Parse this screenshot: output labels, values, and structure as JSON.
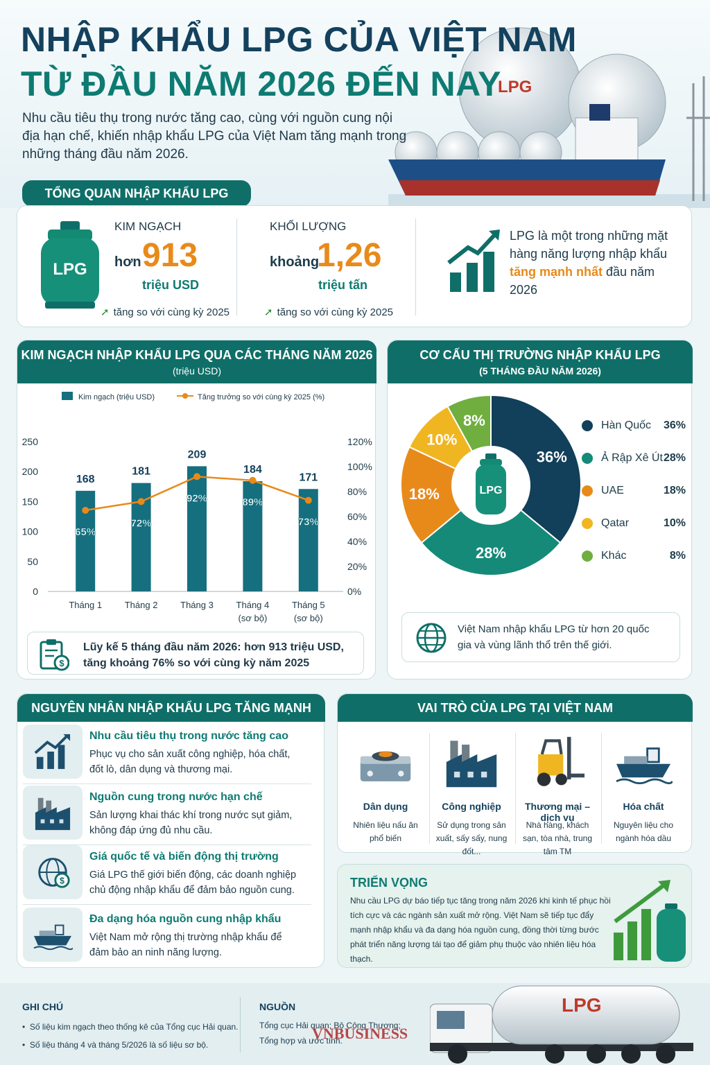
{
  "header": {
    "title_line1": "NHẬP KHẨU LPG CỦA VIỆT NAM",
    "title_line2": "TỪ ĐẦU NĂM 2026 ĐẾN NAY",
    "intro": "Nhu cầu tiêu thụ trong nước tăng cao, cùng với nguồn cung nội địa hạn chế, khiến nhập khẩu LPG của Việt Nam tăng mạnh trong những tháng đầu năm 2026.",
    "tank_label": "LPG"
  },
  "overview": {
    "title": "TỔNG QUAN NHẬP KHẨU LPG",
    "cylinder_label": "LPG",
    "value": {
      "label": "KIM NGẠCH",
      "prefix": "hơn",
      "number": "913",
      "unit": "triệu USD",
      "trend": "tăng so với cùng kỳ 2025"
    },
    "volume": {
      "label": "KHỐI LƯỢNG",
      "prefix": "khoảng",
      "number": "1,26",
      "unit": "triệu tấn",
      "trend": "tăng so với cùng kỳ 2025"
    },
    "note_pre": "LPG là một trong những mặt hàng năng lượng nhập khẩu ",
    "note_highlight": "tăng mạnh nhất",
    "note_post": " đầu năm 2026"
  },
  "monthly": {
    "title": "KIM NGẠCH NHẬP KHẨU LPG QUA CÁC THÁNG NĂM 2026",
    "subtitle": "(triệu USD)",
    "summary_line1": "Lũy kế 5 tháng đầu năm 2026: hơn 913 triệu USD,",
    "summary_line2": "tăng khoảng 76% so với cùng kỳ năm 2025"
  },
  "chart_data": [
    {
      "type": "bar",
      "title": "KIM NGẠCH NHẬP KHẨU LPG QUA CÁC THÁNG NĂM 2026",
      "subtitle": "(triệu USD)",
      "categories": [
        "Tháng 1",
        "Tháng 2",
        "Tháng 3",
        "Tháng 4\n(sơ bộ)",
        "Tháng 5\n(sơ bộ)"
      ],
      "series": [
        {
          "name": "Kim ngạch (triệu USD)",
          "type": "bar",
          "axis": "left",
          "values": [
            168,
            181,
            209,
            184,
            171
          ],
          "color": "#156f7e"
        },
        {
          "name": "Tăng trưởng so với cùng kỳ 2025 (%)",
          "type": "line",
          "axis": "right",
          "values": [
            65,
            72,
            92,
            89,
            73
          ],
          "labels": [
            "65%",
            "72%",
            "92%",
            "89%",
            "73%"
          ],
          "color": "#e88a1a"
        }
      ],
      "y_left": {
        "min": 0,
        "max": 250,
        "ticks": [
          0,
          50,
          100,
          150,
          200,
          250
        ]
      },
      "y_right": {
        "min": 0,
        "max": 120,
        "ticks": [
          "0%",
          "20%",
          "40%",
          "60%",
          "80%",
          "100%",
          "120%"
        ]
      },
      "legend": "top",
      "grid": false
    },
    {
      "type": "pie",
      "title": "CƠ CẤU THỊ TRƯỜNG NHẬP KHẨU LPG",
      "subtitle": "(5 THÁNG ĐẦU NĂM 2026)",
      "center_label": "LPG",
      "slices": [
        {
          "name": "Hàn Quốc",
          "value": 36,
          "label": "36%",
          "color": "#123f59"
        },
        {
          "name": "Ả Rập Xê Út",
          "value": 28,
          "label": "28%",
          "color": "#158a78"
        },
        {
          "name": "UAE",
          "value": 18,
          "label": "18%",
          "color": "#e88a1a"
        },
        {
          "name": "Qatar",
          "value": 10,
          "label": "10%",
          "color": "#f0b622"
        },
        {
          "name": "Khác",
          "value": 8,
          "label": "8%",
          "color": "#6fae3f"
        }
      ],
      "legend": "right"
    }
  ],
  "market": {
    "title": "CƠ CẤU THỊ TRƯỜNG NHẬP KHẨU LPG",
    "subtitle": "(5 THÁNG ĐẦU NĂM 2026)",
    "note": "Việt Nam nhập khẩu LPG từ hơn 20 quốc gia và vùng lãnh thổ trên thế giới."
  },
  "reasons": {
    "title": "NGUYÊN NHÂN NHẬP KHẨU LPG TĂNG MẠNH",
    "items": [
      {
        "title": "Nhu cầu tiêu thụ trong nước tăng cao",
        "desc": "Phục vụ cho sản xuất công nghiệp, hóa chất, đốt lò, dân dụng và thương mại.",
        "icon": "chart-up-icon"
      },
      {
        "title": "Nguồn cung trong nước hạn chế",
        "desc": "Sản lượng khai thác khí trong nước sụt giảm, không đáp ứng đủ nhu cầu.",
        "icon": "factory-icon"
      },
      {
        "title": "Giá quốc tế và biến động thị trường",
        "desc": "Giá LPG thế giới biến động, các doanh nghiệp chủ động nhập khẩu để đảm bảo nguồn cung.",
        "icon": "globe-dollar-icon"
      },
      {
        "title": "Đa dạng hóa nguồn cung nhập khẩu",
        "desc": "Việt Nam mở rộng thị trường nhập khẩu để đảm bảo an ninh năng lượng.",
        "icon": "ship-icon"
      }
    ]
  },
  "roles": {
    "title": "VAI TRÒ CỦA LPG TẠI VIỆT NAM",
    "items": [
      {
        "title": "Dân dụng",
        "desc": "Nhiên liệu nấu ăn phổ biến",
        "icon": "gas-stove-icon"
      },
      {
        "title": "Công nghiệp",
        "desc": "Sử dụng trong sản xuất, sấy sấy, nung đốt...",
        "icon": "factory-icon"
      },
      {
        "title": "Thương mại – dịch vụ",
        "desc": "Nhà hàng, khách sạn, tòa nhà, trung tâm TM",
        "icon": "forklift-icon"
      },
      {
        "title": "Hóa chất",
        "desc": "Nguyên liệu cho ngành hóa dầu",
        "icon": "ship-icon"
      }
    ]
  },
  "outlook": {
    "title": "TRIỂN VỌNG",
    "text": "Nhu cầu LPG dự báo tiếp tục tăng trong năm 2026 khi kinh tế phục hồi tích cực và các ngành sản xuất mở rộng. Việt Nam sẽ tiếp tục đẩy mạnh nhập khẩu và đa dạng hóa nguồn cung, đồng thời từng bước phát triển năng lượng tái tạo để giảm phụ thuộc vào nhiên liệu hóa thạch."
  },
  "footer": {
    "notes_title": "GHI CHÚ",
    "notes": [
      "Số liệu kim ngạch theo thống kê của Tổng cục Hải quan.",
      "Số liệu tháng 4 và tháng 5/2026 là số liệu sơ bộ."
    ],
    "source_title": "NGUỒN",
    "source_line1": "Tổng cục Hải quan; Bộ Công Thương;",
    "source_line2": "Tổng hợp và ước tính.",
    "truck_label": "LPG",
    "watermark": "VNBUSINESS"
  }
}
